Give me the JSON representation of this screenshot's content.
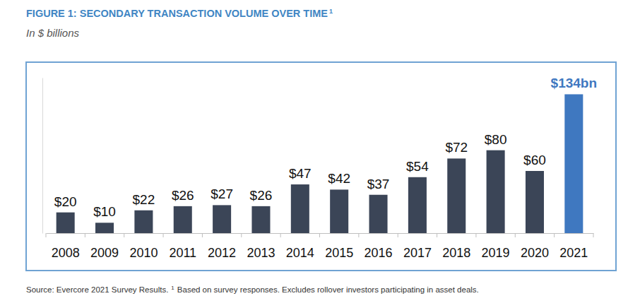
{
  "chart_data": {
    "type": "bar",
    "title": "FIGURE 1: SECONDARY TRANSACTION VOLUME OVER TIME",
    "title_note": "1",
    "subtitle": "In $ billions",
    "source": "Source: Evercore 2021 Survey Results.",
    "source_note_marker": "1",
    "source_note": "Based on survey responses. Excludes rollover investors participating in asset deals.",
    "categories": [
      "2008",
      "2009",
      "2010",
      "2011",
      "2012",
      "2013",
      "2014",
      "2015",
      "2016",
      "2017",
      "2018",
      "2019",
      "2020",
      "2021"
    ],
    "values": [
      20,
      10,
      22,
      26,
      27,
      26,
      47,
      42,
      37,
      54,
      72,
      80,
      60,
      134
    ],
    "value_labels": [
      "$20",
      "$10",
      "$22",
      "$26",
      "$27",
      "$26",
      "$47",
      "$42",
      "$37",
      "$54",
      "$72",
      "$80",
      "$60",
      "$134bn"
    ],
    "colors": [
      "#3b4557",
      "#3b4557",
      "#3b4557",
      "#3b4557",
      "#3b4557",
      "#3b4557",
      "#3b4557",
      "#3b4557",
      "#3b4557",
      "#3b4557",
      "#3b4557",
      "#3b4557",
      "#3b4557",
      "#3f78c0"
    ],
    "ylim": [
      0,
      150
    ],
    "tick_labels": "x",
    "data_labels": true,
    "grid": false
  }
}
